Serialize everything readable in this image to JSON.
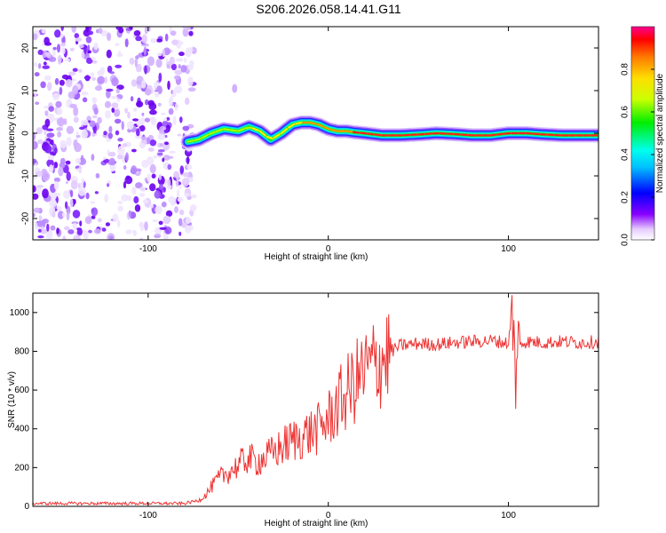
{
  "title": "S206.2026.058.14.41.G11",
  "colors": {
    "snr_line": "#ee3333",
    "background": "#ffffff",
    "axis": "#000000"
  },
  "chart_data": [
    {
      "type": "heatmap",
      "name": "spectrogram",
      "title": "S206.2026.058.14.41.G11",
      "xlabel": "Height of straight line (km)",
      "ylabel": "Frequency (Hz)",
      "xlim": [
        -164,
        150
      ],
      "ylim": [
        -25,
        25
      ],
      "xticks": [
        -100,
        0,
        100
      ],
      "yticks": [
        -20,
        -10,
        0,
        10,
        20
      ],
      "noise_region_x": [
        -164,
        -78
      ],
      "ridge": {
        "description": "strong narrow spectral line",
        "x": [
          -78,
          -72,
          -65,
          -58,
          -50,
          -44,
          -38,
          -32,
          -26,
          -20,
          -15,
          -10,
          -5,
          0,
          5,
          10,
          15,
          20,
          30,
          40,
          50,
          60,
          70,
          80,
          90,
          100,
          110,
          120,
          130,
          140,
          150
        ],
        "freq_hz": [
          -2.0,
          -1.5,
          0.0,
          1.0,
          0.5,
          1.5,
          0.5,
          -1.5,
          0.0,
          2.0,
          2.5,
          2.5,
          2.0,
          1.0,
          0.5,
          0.5,
          0.2,
          0.0,
          -0.5,
          -0.5,
          -0.3,
          0.0,
          -0.2,
          -0.5,
          -0.5,
          0.0,
          0.0,
          -0.3,
          -0.5,
          -0.5,
          -0.5
        ],
        "peak_amplitude": [
          0.35,
          0.4,
          0.45,
          0.5,
          0.55,
          0.6,
          0.65,
          0.6,
          0.65,
          0.7,
          0.75,
          0.8,
          0.8,
          0.85,
          0.85,
          0.85,
          0.9,
          0.9,
          0.9,
          0.9,
          0.9,
          0.9,
          0.9,
          0.9,
          0.9,
          0.9,
          0.9,
          0.9,
          0.9,
          0.9,
          0.9
        ]
      },
      "colorbar": {
        "label": "Normalized spectral amplitude",
        "range": [
          0,
          1
        ],
        "ticks": [
          "0.0",
          "0.2",
          "0.4",
          "0.6",
          "0.8"
        ]
      }
    },
    {
      "type": "line",
      "name": "snr",
      "xlabel": "Height of straight line (km)",
      "ylabel": "SNR (10 * v/v)",
      "xlim": [
        -164,
        150
      ],
      "ylim": [
        0,
        1100
      ],
      "xticks": [
        -100,
        0,
        100
      ],
      "yticks": [
        0,
        200,
        400,
        600,
        800,
        1000
      ],
      "series": [
        {
          "name": "SNR",
          "x": [
            -164,
            -120,
            -80,
            -72,
            -68,
            -64,
            -60,
            -55,
            -50,
            -45,
            -40,
            -35,
            -30,
            -25,
            -20,
            -15,
            -10,
            -5,
            0,
            5,
            10,
            15,
            20,
            25,
            30,
            35,
            40,
            50,
            60,
            70,
            80,
            90,
            95,
            100,
            102,
            104,
            106,
            110,
            120,
            130,
            140,
            150
          ],
          "values": [
            15,
            15,
            15,
            30,
            60,
            110,
            150,
            180,
            210,
            250,
            230,
            250,
            280,
            310,
            340,
            360,
            380,
            400,
            450,
            520,
            580,
            640,
            690,
            730,
            760,
            800,
            830,
            840,
            835,
            845,
            850,
            855,
            850,
            840,
            1050,
            700,
            840,
            850,
            845,
            850,
            845,
            850
          ]
        }
      ]
    }
  ]
}
